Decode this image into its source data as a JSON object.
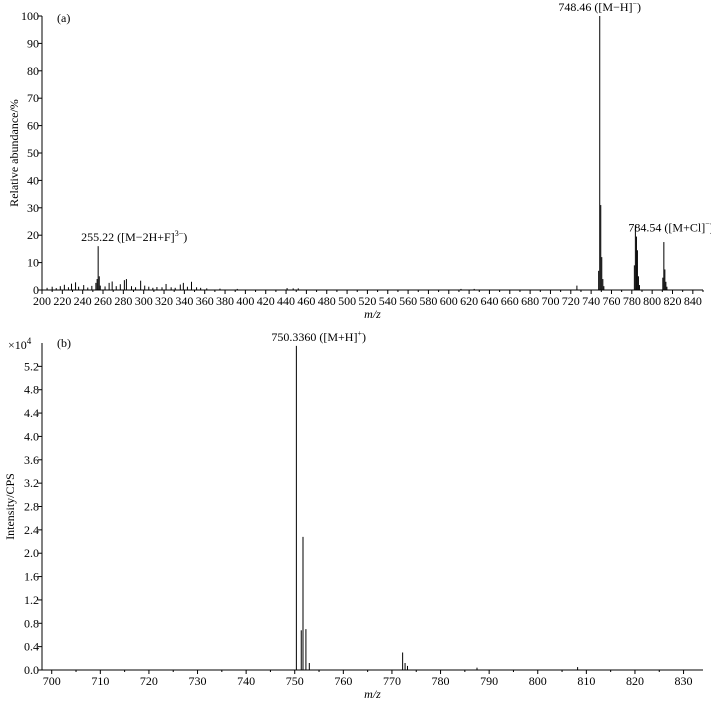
{
  "chart_data": [
    {
      "type": "bar",
      "panel_label": "(a)",
      "xlabel": "m/z",
      "ylabel": "Relative abundance/%",
      "xlim": [
        200,
        850
      ],
      "ylim": [
        0,
        100
      ],
      "xticks": [
        200,
        220,
        240,
        260,
        280,
        300,
        320,
        340,
        360,
        380,
        400,
        420,
        440,
        460,
        480,
        500,
        520,
        540,
        560,
        580,
        600,
        620,
        640,
        660,
        680,
        700,
        720,
        740,
        760,
        780,
        800,
        820,
        840
      ],
      "yticks": [
        0,
        10,
        20,
        30,
        40,
        50,
        60,
        70,
        80,
        90,
        100
      ],
      "grid": false,
      "peaks": [
        {
          "x": 205,
          "y": 0.8
        },
        {
          "x": 210,
          "y": 1.2
        },
        {
          "x": 214,
          "y": 0.7
        },
        {
          "x": 218,
          "y": 1.4
        },
        {
          "x": 222,
          "y": 1.9
        },
        {
          "x": 226,
          "y": 1.0
        },
        {
          "x": 229,
          "y": 2.3
        },
        {
          "x": 233,
          "y": 2.8
        },
        {
          "x": 236,
          "y": 1.2
        },
        {
          "x": 241,
          "y": 1.8
        },
        {
          "x": 245,
          "y": 0.9
        },
        {
          "x": 249,
          "y": 1.5
        },
        {
          "x": 253,
          "y": 2.6
        },
        {
          "x": 254.2,
          "y": 4.0
        },
        {
          "x": 255.22,
          "y": 16
        },
        {
          "x": 256.3,
          "y": 5.0
        },
        {
          "x": 257.3,
          "y": 1.6
        },
        {
          "x": 262,
          "y": 1.3
        },
        {
          "x": 266,
          "y": 2.6
        },
        {
          "x": 269,
          "y": 3.1
        },
        {
          "x": 273,
          "y": 1.4
        },
        {
          "x": 277,
          "y": 2.1
        },
        {
          "x": 281,
          "y": 3.6
        },
        {
          "x": 283,
          "y": 4.0
        },
        {
          "x": 288,
          "y": 1.4
        },
        {
          "x": 292,
          "y": 1.0
        },
        {
          "x": 297,
          "y": 3.4
        },
        {
          "x": 301,
          "y": 1.6
        },
        {
          "x": 305,
          "y": 1.2
        },
        {
          "x": 309,
          "y": 0.8
        },
        {
          "x": 313,
          "y": 1.1
        },
        {
          "x": 318,
          "y": 1.0
        },
        {
          "x": 322,
          "y": 2.2
        },
        {
          "x": 327,
          "y": 1.0
        },
        {
          "x": 331,
          "y": 0.8
        },
        {
          "x": 336,
          "y": 2.0
        },
        {
          "x": 339,
          "y": 2.6
        },
        {
          "x": 343,
          "y": 1.2
        },
        {
          "x": 347,
          "y": 3.0
        },
        {
          "x": 352,
          "y": 1.0
        },
        {
          "x": 356,
          "y": 0.8
        },
        {
          "x": 362,
          "y": 0.6
        },
        {
          "x": 375,
          "y": 0.5
        },
        {
          "x": 392,
          "y": 0.4
        },
        {
          "x": 441,
          "y": 0.7
        },
        {
          "x": 447,
          "y": 0.6
        },
        {
          "x": 452,
          "y": 0.6
        },
        {
          "x": 612,
          "y": 0.4
        },
        {
          "x": 625,
          "y": 0.4
        },
        {
          "x": 726,
          "y": 1.6
        },
        {
          "x": 747.4,
          "y": 7.0
        },
        {
          "x": 748.46,
          "y": 100
        },
        {
          "x": 749.46,
          "y": 31
        },
        {
          "x": 750.45,
          "y": 12
        },
        {
          "x": 751.5,
          "y": 4.0
        },
        {
          "x": 752.5,
          "y": 1.4
        },
        {
          "x": 782.5,
          "y": 9.0
        },
        {
          "x": 783.5,
          "y": 23.5
        },
        {
          "x": 784.54,
          "y": 19.5
        },
        {
          "x": 785.5,
          "y": 14.5
        },
        {
          "x": 786.5,
          "y": 5.0
        },
        {
          "x": 787.5,
          "y": 1.8
        },
        {
          "x": 810.5,
          "y": 4.5
        },
        {
          "x": 811.5,
          "y": 17.5
        },
        {
          "x": 812.5,
          "y": 7.5
        },
        {
          "x": 813.5,
          "y": 3.0
        },
        {
          "x": 814.5,
          "y": 1.2
        }
      ],
      "annotations": [
        {
          "x": 255.22,
          "y": 16,
          "prefix": "255.22 ([M−2H+F]",
          "sup": "3−",
          "suffix": ")"
        },
        {
          "x": 748.46,
          "y": 100,
          "prefix": "748.46 ([M−H]",
          "sup": "−",
          "suffix": ")"
        },
        {
          "x": 784.54,
          "y": 19.5,
          "prefix": "784.54 ([M+Cl]",
          "sup": "−",
          "suffix": ")"
        }
      ]
    },
    {
      "type": "bar",
      "panel_label": "(b)",
      "xlabel": "m/z",
      "ylabel": "Intensity/CPS",
      "y_multiplier": "×10",
      "y_multiplier_exp": "4",
      "xlim": [
        698,
        834
      ],
      "ylim": [
        0,
        5.6
      ],
      "xticks": [
        700,
        710,
        720,
        730,
        740,
        750,
        760,
        770,
        780,
        790,
        800,
        810,
        820,
        830
      ],
      "yticks": [
        0,
        0.4,
        0.8,
        1.2,
        1.6,
        2.0,
        2.4,
        2.8,
        3.2,
        3.6,
        4.0,
        4.4,
        4.8,
        5.2
      ],
      "grid": false,
      "peaks": [
        {
          "x": 750.336,
          "y": 5.55
        },
        {
          "x": 751.34,
          "y": 0.68
        },
        {
          "x": 751.7,
          "y": 2.28
        },
        {
          "x": 752.3,
          "y": 0.7
        },
        {
          "x": 753.0,
          "y": 0.12
        },
        {
          "x": 772.2,
          "y": 0.3
        },
        {
          "x": 772.7,
          "y": 0.12
        },
        {
          "x": 773.2,
          "y": 0.07
        },
        {
          "x": 787.5,
          "y": 0.04
        },
        {
          "x": 808.2,
          "y": 0.05
        }
      ],
      "annotations": [
        {
          "x": 750.336,
          "y": 5.55,
          "prefix": "750.3360 ([M+H]",
          "sup": "+",
          "suffix": ")"
        }
      ]
    }
  ]
}
